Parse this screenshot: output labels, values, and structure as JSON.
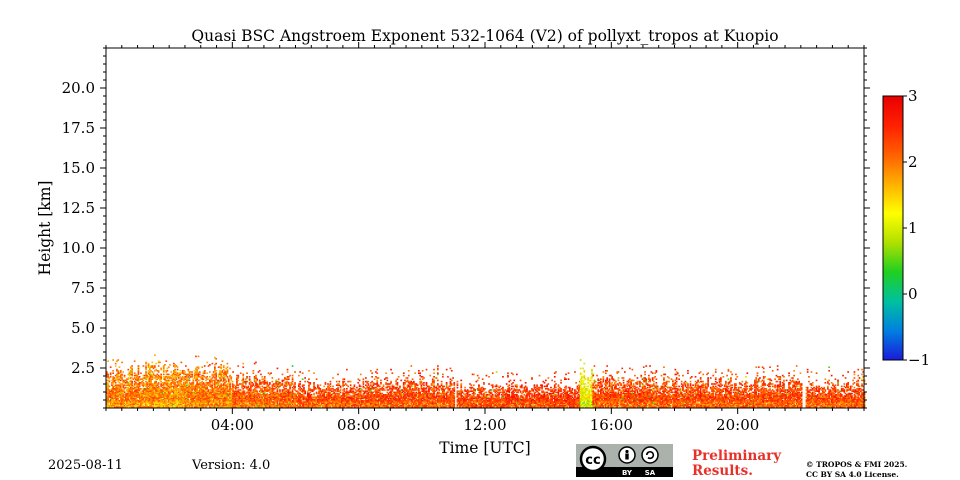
{
  "chart_data": {
    "type": "heatmap",
    "title": "Quasi BSC Angstroem Exponent 532-1064 (V2) of pollyxt_tropos at Kuopio",
    "xlabel": "Time [UTC]",
    "ylabel": "Height [km]",
    "xlim_hours": [
      0,
      24
    ],
    "ylim_km": [
      0,
      22.5
    ],
    "x_ticks": [
      {
        "hour": 4,
        "label": "04:00"
      },
      {
        "hour": 8,
        "label": "08:00"
      },
      {
        "hour": 12,
        "label": "12:00"
      },
      {
        "hour": 16,
        "label": "16:00"
      },
      {
        "hour": 20,
        "label": "20:00"
      }
    ],
    "y_ticks": [
      {
        "value": 2.5,
        "label": "2.5"
      },
      {
        "value": 5.0,
        "label": "5.0"
      },
      {
        "value": 7.5,
        "label": "7.5"
      },
      {
        "value": 10.0,
        "label": "10.0"
      },
      {
        "value": 12.5,
        "label": "12.5"
      },
      {
        "value": 15.0,
        "label": "15.0"
      },
      {
        "value": 17.5,
        "label": "17.5"
      },
      {
        "value": 20.0,
        "label": "20.0"
      }
    ],
    "colorbar": {
      "min": -1,
      "max": 3,
      "ticks": [
        {
          "value": 3,
          "label": "3"
        },
        {
          "value": 2,
          "label": "2"
        },
        {
          "value": 1,
          "label": "1"
        },
        {
          "value": 0,
          "label": "0"
        },
        {
          "value": -1,
          "label": "−1"
        }
      ],
      "colormap": [
        "#1a1ad9",
        "#0080e0",
        "#00c0a0",
        "#20d020",
        "#b0e000",
        "#ffff00",
        "#ffb000",
        "#ff6000",
        "#ff2000",
        "#e80000"
      ]
    },
    "data_profile": [
      {
        "start_hour": 0.0,
        "end_hour": 1.0,
        "top_km": 2.2,
        "mean_value": 2.0
      },
      {
        "start_hour": 1.0,
        "end_hour": 2.5,
        "top_km": 2.4,
        "mean_value": 1.9
      },
      {
        "start_hour": 2.5,
        "end_hour": 4.0,
        "top_km": 2.3,
        "mean_value": 2.0
      },
      {
        "start_hour": 4.0,
        "end_hour": 6.0,
        "top_km": 1.8,
        "mean_value": 2.2
      },
      {
        "start_hour": 6.0,
        "end_hour": 8.0,
        "top_km": 1.4,
        "mean_value": 2.3
      },
      {
        "start_hour": 8.0,
        "end_hour": 11.0,
        "top_km": 1.6,
        "mean_value": 2.3
      },
      {
        "start_hour": 11.0,
        "end_hour": 11.1,
        "top_km": 0.0,
        "mean_value": null
      },
      {
        "start_hour": 11.1,
        "end_hour": 15.0,
        "top_km": 1.3,
        "mean_value": 2.4
      },
      {
        "start_hour": 15.0,
        "end_hour": 15.4,
        "top_km": 2.0,
        "mean_value": 1.2
      },
      {
        "start_hour": 15.4,
        "end_hour": 18.0,
        "top_km": 1.7,
        "mean_value": 2.3
      },
      {
        "start_hour": 18.0,
        "end_hour": 22.0,
        "top_km": 1.6,
        "mean_value": 2.3
      },
      {
        "start_hour": 22.0,
        "end_hour": 22.15,
        "top_km": 0.0,
        "mean_value": null
      },
      {
        "start_hour": 22.15,
        "end_hour": 24.0,
        "top_km": 1.5,
        "mean_value": 2.3
      }
    ]
  },
  "footer": {
    "date": "2025-08-11",
    "version": "Version: 4.0",
    "preliminary_line1": "Preliminary",
    "preliminary_line2": "Results.",
    "copyright_line1": "© TROPOS & FMI 2025.",
    "copyright_line2": "CC BY SA 4.0 License.",
    "license_badge": {
      "cc": "cc",
      "by": "BY",
      "sa": "SA"
    }
  }
}
